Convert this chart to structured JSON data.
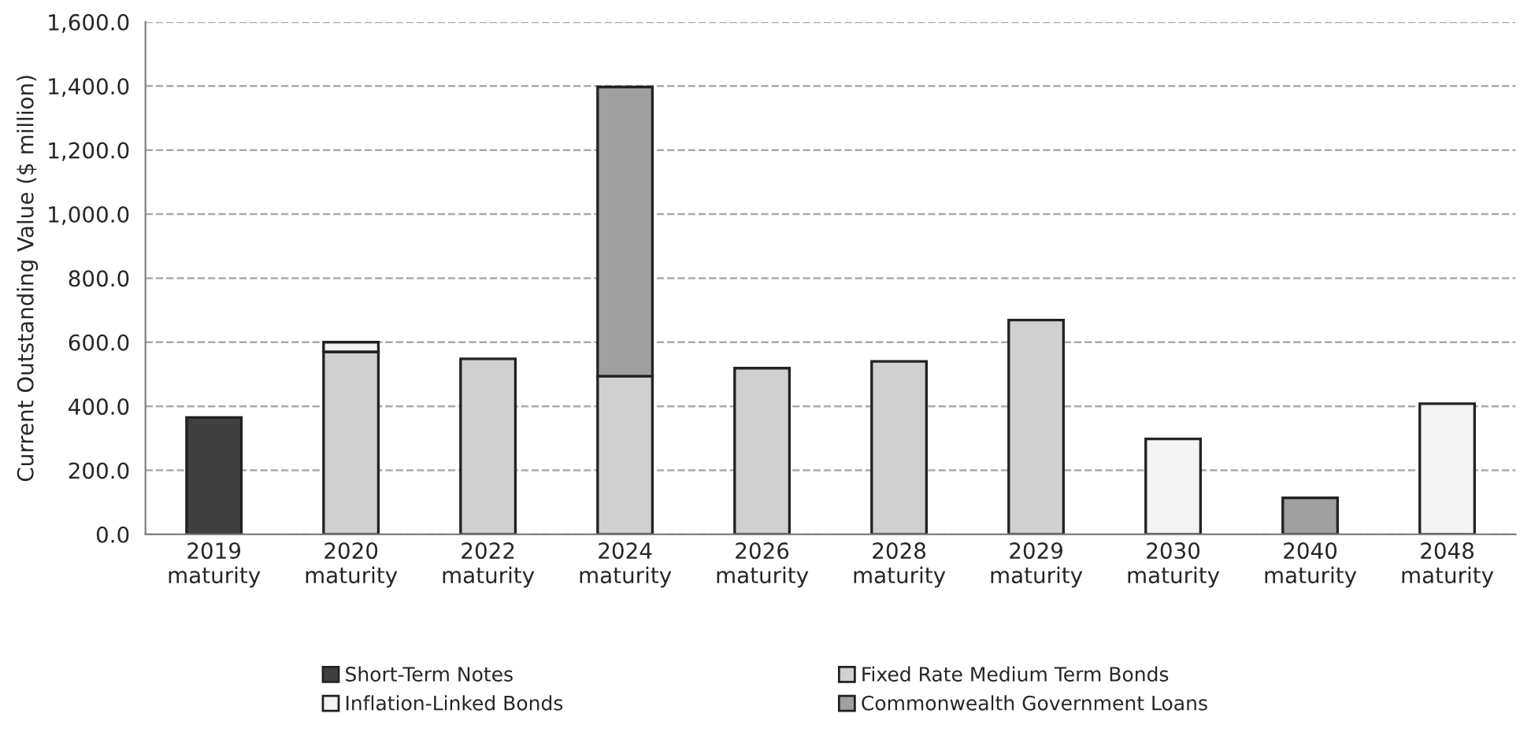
{
  "chart_data": {
    "type": "bar",
    "stacked": true,
    "ylabel": "Current Outstanding Value ($ million)",
    "categories": [
      "2019\nmaturity",
      "2020\nmaturity",
      "2022\nmaturity",
      "2024\nmaturity",
      "2026\nmaturity",
      "2028\nmaturity",
      "2029\nmaturity",
      "2030\nmaturity",
      "2040\nmaturity",
      "2048\nmaturity"
    ],
    "series": [
      {
        "name": "Short-Term Notes",
        "color": "#404040",
        "values": [
          365,
          null,
          null,
          null,
          null,
          null,
          null,
          null,
          null,
          null
        ]
      },
      {
        "name": "Fixed Rate Medium Term Bonds",
        "color": "#d0d0d0",
        "values": [
          null,
          570,
          548,
          494,
          519,
          540,
          669,
          null,
          null,
          null
        ]
      },
      {
        "name": "Inflation-Linked Bonds",
        "color": "#f4f4f4",
        "values": [
          null,
          30,
          null,
          null,
          null,
          null,
          null,
          298,
          null,
          408
        ]
      },
      {
        "name": "Commonwealth Government Loans",
        "color": "#a0a0a0",
        "values": [
          null,
          null,
          null,
          903,
          null,
          null,
          null,
          null,
          114,
          null
        ]
      }
    ],
    "ylim": [
      0,
      1600
    ],
    "yticks": [
      {
        "value": 0,
        "label": "0.0"
      },
      {
        "value": 200,
        "label": "200.0"
      },
      {
        "value": 400,
        "label": "400.0"
      },
      {
        "value": 600,
        "label": "600.0"
      },
      {
        "value": 800,
        "label": "800.0"
      },
      {
        "value": 1000,
        "label": "1,000.0"
      },
      {
        "value": 1200,
        "label": "1,200.0"
      },
      {
        "value": 1400,
        "label": "1,400.0"
      },
      {
        "value": 1600,
        "label": "1,600.0"
      }
    ],
    "grid": "y",
    "legend": "bottom"
  }
}
